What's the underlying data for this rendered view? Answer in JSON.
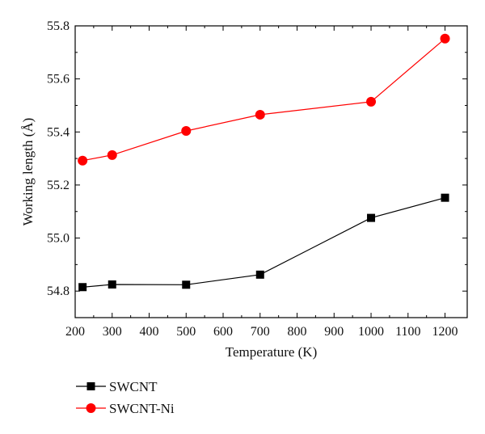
{
  "chart_data": {
    "type": "line",
    "xlabel": "Temperature (K)",
    "ylabel": "Working length (Å)",
    "xlim": [
      200,
      1260
    ],
    "ylim": [
      54.7,
      55.8
    ],
    "xticks": [
      200,
      300,
      400,
      500,
      600,
      700,
      800,
      900,
      1000,
      1100,
      1200
    ],
    "xtick_labels": [
      "200",
      "300",
      "400",
      "500",
      "600",
      "700",
      "800",
      "900",
      "1000",
      "1100",
      "1200"
    ],
    "yticks": [
      54.8,
      55.0,
      55.2,
      55.4,
      55.6,
      55.8
    ],
    "ytick_labels": [
      "54.8",
      "55.0",
      "55.2",
      "55.4",
      "55.6",
      "55.8"
    ],
    "grid": false,
    "legend_position": "bottom-left-outside",
    "series": [
      {
        "name": "SWCNT",
        "marker": "square",
        "color": "#000000",
        "x": [
          220,
          300,
          500,
          700,
          1000,
          1200
        ],
        "y": [
          54.815,
          54.825,
          54.824,
          54.862,
          55.076,
          55.152
        ]
      },
      {
        "name": "SWCNT-Ni",
        "marker": "circle",
        "color": "#ff0000",
        "x": [
          220,
          300,
          500,
          700,
          1000,
          1200
        ],
        "y": [
          55.292,
          55.313,
          55.404,
          55.465,
          55.514,
          55.752
        ]
      }
    ]
  }
}
